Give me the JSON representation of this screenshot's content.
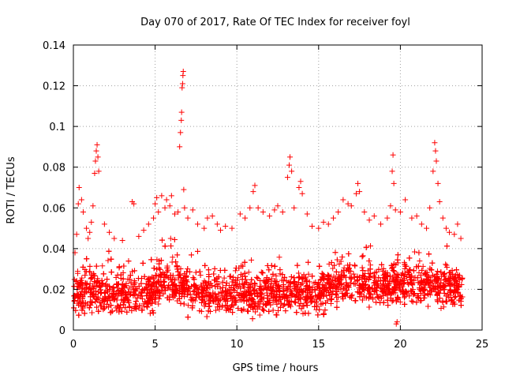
{
  "chart_data": {
    "type": "scatter",
    "title": "Day 070 of 2017, Rate Of TEC Index for receiver foyl",
    "xlabel": "GPS time / hours",
    "ylabel": "ROTI / TECUs",
    "xlim": [
      0,
      25
    ],
    "ylim": [
      0,
      0.14
    ],
    "xticks": [
      0,
      5,
      10,
      15,
      20,
      25
    ],
    "xtick_labels": [
      "0",
      "5",
      "10",
      "15",
      "20",
      "25"
    ],
    "yticks": [
      0,
      0.02,
      0.04,
      0.06,
      0.08,
      0.1,
      0.12,
      0.14
    ],
    "ytick_labels": [
      "0",
      "0.02",
      "0.04",
      "0.06",
      "0.08",
      "0.1",
      "0.12",
      "0.14"
    ],
    "grid": true,
    "marker": "+",
    "color": "#ff0000",
    "x_data_range": [
      0,
      23.8
    ],
    "baseline": {
      "description": "dense cloud of ROTI samples",
      "typical_min": 0.005,
      "typical_max": 0.045,
      "center": 0.018
    },
    "series": [
      {
        "name": "ROTI samples (notable excursions)",
        "points": [
          [
            0.1,
            0.038
          ],
          [
            0.2,
            0.047
          ],
          [
            0.3,
            0.062
          ],
          [
            0.35,
            0.07
          ],
          [
            0.5,
            0.064
          ],
          [
            0.6,
            0.058
          ],
          [
            0.8,
            0.05
          ],
          [
            0.9,
            0.045
          ],
          [
            1.0,
            0.048
          ],
          [
            1.1,
            0.053
          ],
          [
            1.2,
            0.061
          ],
          [
            1.3,
            0.077
          ],
          [
            1.35,
            0.083
          ],
          [
            1.4,
            0.088
          ],
          [
            1.45,
            0.091
          ],
          [
            1.5,
            0.085
          ],
          [
            1.55,
            0.078
          ],
          [
            1.9,
            0.052
          ],
          [
            2.2,
            0.048
          ],
          [
            2.5,
            0.045
          ],
          [
            3.0,
            0.044
          ],
          [
            3.6,
            0.063
          ],
          [
            3.7,
            0.062
          ],
          [
            4.0,
            0.046
          ],
          [
            4.3,
            0.049
          ],
          [
            4.6,
            0.052
          ],
          [
            4.9,
            0.055
          ],
          [
            5.0,
            0.062
          ],
          [
            5.1,
            0.065
          ],
          [
            5.2,
            0.058
          ],
          [
            5.4,
            0.066
          ],
          [
            5.6,
            0.06
          ],
          [
            5.7,
            0.064
          ],
          [
            5.9,
            0.061
          ],
          [
            6.0,
            0.066
          ],
          [
            6.2,
            0.057
          ],
          [
            6.4,
            0.058
          ],
          [
            6.5,
            0.09
          ],
          [
            6.55,
            0.097
          ],
          [
            6.6,
            0.103
          ],
          [
            6.62,
            0.107
          ],
          [
            6.65,
            0.119
          ],
          [
            6.68,
            0.121
          ],
          [
            6.7,
            0.125
          ],
          [
            6.72,
            0.127
          ],
          [
            6.75,
            0.069
          ],
          [
            6.8,
            0.06
          ],
          [
            7.0,
            0.055
          ],
          [
            7.3,
            0.059
          ],
          [
            7.6,
            0.052
          ],
          [
            8.0,
            0.05
          ],
          [
            8.2,
            0.055
          ],
          [
            8.5,
            0.056
          ],
          [
            8.8,
            0.052
          ],
          [
            9.0,
            0.049
          ],
          [
            9.3,
            0.051
          ],
          [
            9.7,
            0.05
          ],
          [
            10.2,
            0.057
          ],
          [
            10.5,
            0.055
          ],
          [
            10.8,
            0.06
          ],
          [
            11.0,
            0.068
          ],
          [
            11.1,
            0.071
          ],
          [
            11.3,
            0.06
          ],
          [
            11.6,
            0.058
          ],
          [
            12.0,
            0.056
          ],
          [
            12.3,
            0.059
          ],
          [
            12.5,
            0.061
          ],
          [
            12.8,
            0.058
          ],
          [
            13.1,
            0.075
          ],
          [
            13.2,
            0.081
          ],
          [
            13.25,
            0.085
          ],
          [
            13.35,
            0.078
          ],
          [
            13.5,
            0.06
          ],
          [
            13.8,
            0.07
          ],
          [
            13.9,
            0.073
          ],
          [
            14.0,
            0.067
          ],
          [
            14.3,
            0.057
          ],
          [
            14.6,
            0.051
          ],
          [
            15.0,
            0.05
          ],
          [
            15.3,
            0.053
          ],
          [
            15.6,
            0.052
          ],
          [
            15.9,
            0.055
          ],
          [
            16.2,
            0.058
          ],
          [
            16.5,
            0.064
          ],
          [
            16.8,
            0.062
          ],
          [
            17.0,
            0.061
          ],
          [
            17.3,
            0.067
          ],
          [
            17.4,
            0.072
          ],
          [
            17.5,
            0.068
          ],
          [
            17.8,
            0.058
          ],
          [
            18.1,
            0.054
          ],
          [
            18.4,
            0.056
          ],
          [
            18.8,
            0.052
          ],
          [
            19.2,
            0.055
          ],
          [
            19.4,
            0.061
          ],
          [
            19.5,
            0.078
          ],
          [
            19.55,
            0.086
          ],
          [
            19.6,
            0.072
          ],
          [
            19.7,
            0.059
          ],
          [
            19.75,
            0.003
          ],
          [
            19.8,
            0.004
          ],
          [
            20.0,
            0.058
          ],
          [
            20.3,
            0.064
          ],
          [
            20.7,
            0.055
          ],
          [
            21.0,
            0.056
          ],
          [
            21.3,
            0.052
          ],
          [
            21.6,
            0.05
          ],
          [
            21.8,
            0.06
          ],
          [
            22.0,
            0.078
          ],
          [
            22.1,
            0.092
          ],
          [
            22.15,
            0.088
          ],
          [
            22.2,
            0.083
          ],
          [
            22.3,
            0.072
          ],
          [
            22.4,
            0.063
          ],
          [
            22.6,
            0.055
          ],
          [
            22.8,
            0.05
          ],
          [
            23.0,
            0.048
          ],
          [
            23.3,
            0.047
          ],
          [
            23.5,
            0.052
          ],
          [
            23.7,
            0.045
          ]
        ]
      }
    ]
  }
}
